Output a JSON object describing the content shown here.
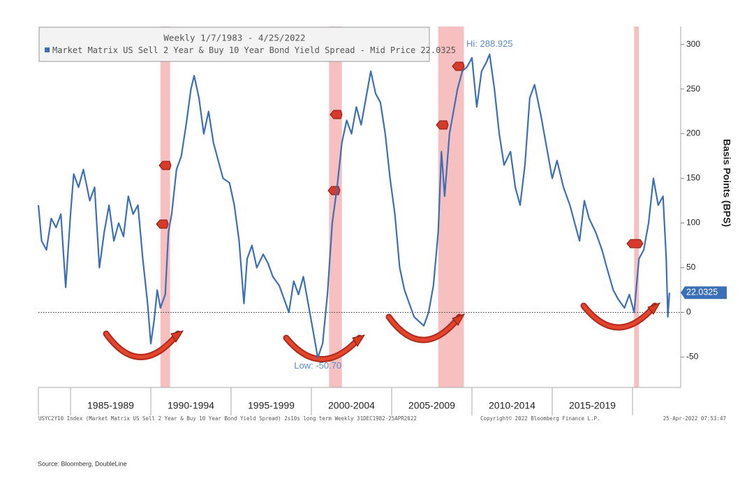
{
  "chart_data": {
    "type": "line",
    "legend_title": "Weekly 1/7/1983 - 4/25/2022",
    "y_axis_label": "Basis Points (BPS)",
    "xlim": [
      1983,
      2023
    ],
    "xticks": [
      1985,
      1990,
      1995,
      2000,
      2005,
      2010,
      2015,
      2020
    ],
    "x_period_labels": [
      "1985-1989",
      "1990-1994",
      "1995-1999",
      "2000-2004",
      "2005-2009",
      "2010-2014",
      "2015-2019"
    ],
    "ylim": [
      -84,
      320
    ],
    "yticks": [
      -50,
      0,
      50,
      100,
      150,
      200,
      250,
      300
    ],
    "zero_line": true,
    "shaded_periods": [
      [
        1990.6,
        1991.2
      ],
      [
        2001.1,
        2001.9
      ],
      [
        2007.9,
        2009.5
      ],
      [
        2020.1,
        2020.4
      ]
    ],
    "shade_color": "#f5b5b5",
    "last_value": 22.0325,
    "annotations": [
      {
        "text": "Hi: 288.925",
        "x": 2011.1,
        "y": 288.925
      },
      {
        "text": "Low: -50.70",
        "x": 2000.4,
        "y": -50.7
      }
    ],
    "x": [
      1983.0,
      1983.2,
      1983.5,
      1983.8,
      1984.1,
      1984.4,
      1984.7,
      1985.0,
      1985.2,
      1985.5,
      1985.8,
      1986.2,
      1986.5,
      1986.8,
      1987.1,
      1987.4,
      1987.7,
      1988.0,
      1988.3,
      1988.6,
      1988.9,
      1989.2,
      1989.5,
      1989.8,
      1990.0,
      1990.2,
      1990.4,
      1990.6,
      1990.9,
      1991.1,
      1991.3,
      1991.6,
      1991.9,
      1992.2,
      1992.5,
      1992.7,
      1993.0,
      1993.3,
      1993.6,
      1993.9,
      1994.2,
      1994.5,
      1994.9,
      1995.2,
      1995.5,
      1995.8,
      1996.0,
      1996.3,
      1996.6,
      1997.0,
      1997.3,
      1997.6,
      1998.0,
      1998.3,
      1998.6,
      1998.9,
      1999.2,
      1999.5,
      1999.8,
      2000.1,
      2000.4,
      2000.7,
      2001.0,
      2001.3,
      2001.6,
      2001.9,
      2002.2,
      2002.5,
      2002.8,
      2003.1,
      2003.4,
      2003.7,
      2004.0,
      2004.3,
      2004.6,
      2004.9,
      2005.2,
      2005.5,
      2005.8,
      2006.1,
      2006.4,
      2006.7,
      2007.0,
      2007.3,
      2007.6,
      2007.9,
      2008.1,
      2008.3,
      2008.6,
      2008.9,
      2009.1,
      2009.4,
      2009.7,
      2010.0,
      2010.3,
      2010.6,
      2010.9,
      2011.1,
      2011.4,
      2011.7,
      2012.0,
      2012.4,
      2012.7,
      2013.0,
      2013.3,
      2013.6,
      2013.9,
      2014.3,
      2014.6,
      2015.0,
      2015.3,
      2015.7,
      2016.1,
      2016.4,
      2016.7,
      2017.0,
      2017.3,
      2017.7,
      2018.1,
      2018.4,
      2018.8,
      2019.1,
      2019.5,
      2019.8,
      2020.1,
      2020.4,
      2020.7,
      2021.0,
      2021.3,
      2021.6,
      2021.9,
      2022.1,
      2022.2,
      2022.3
    ],
    "series": [
      {
        "name": "Market Matrix US Sell 2 Year & Buy 10 Year Bond Yield Spread - Mid Price",
        "color": "#3b6fb6",
        "values": [
          120,
          80,
          70,
          105,
          95,
          110,
          28,
          110,
          155,
          140,
          160,
          125,
          140,
          50,
          90,
          120,
          80,
          100,
          85,
          130,
          110,
          120,
          60,
          10,
          -35,
          -10,
          25,
          5,
          20,
          90,
          110,
          160,
          175,
          210,
          250,
          265,
          240,
          200,
          225,
          190,
          170,
          150,
          145,
          120,
          80,
          10,
          60,
          75,
          50,
          65,
          55,
          40,
          30,
          15,
          0,
          35,
          20,
          40,
          10,
          -20,
          -50.7,
          -35,
          20,
          100,
          140,
          190,
          215,
          200,
          230,
          210,
          240,
          270,
          245,
          235,
          200,
          150,
          110,
          50,
          25,
          10,
          -5,
          -10,
          -15,
          0,
          30,
          90,
          180,
          130,
          200,
          230,
          250,
          270,
          275,
          285,
          230,
          270,
          280,
          288.925,
          250,
          200,
          165,
          180,
          140,
          120,
          165,
          240,
          255,
          220,
          190,
          150,
          170,
          140,
          120,
          100,
          80,
          125,
          105,
          90,
          70,
          50,
          25,
          15,
          5,
          20,
          0,
          60,
          70,
          100,
          150,
          120,
          130,
          60,
          -5,
          22.0325
        ]
      }
    ],
    "footer_left": "USYC2Y10 Index (Market Matrix US Sell 2 Year & Buy 10 Year Bond Yield Spread) 2s10s long term  Weekly 31DEC1982-25APR2022",
    "footer_middle": "Copyright© 2022 Bloomberg Finance L.P.",
    "footer_right": "25-Apr-2022 07:53:47",
    "source": "Source: Bloomberg, DoubleLine"
  }
}
